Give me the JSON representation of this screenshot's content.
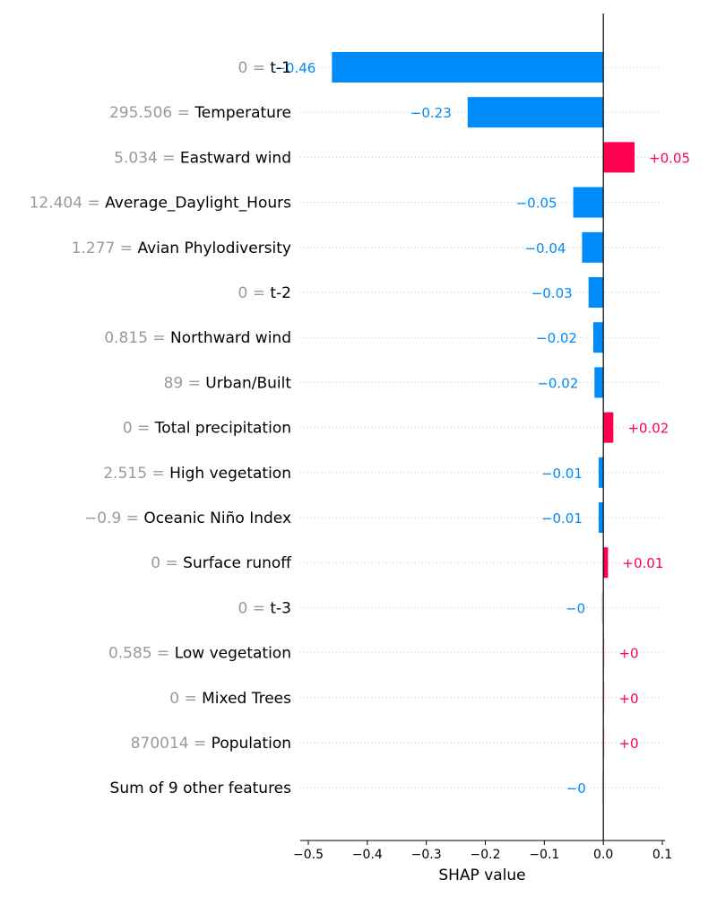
{
  "chart_data": {
    "type": "bar",
    "orientation": "horizontal",
    "xlabel": "SHAP value",
    "xlim": [
      -0.52,
      0.105
    ],
    "xticks": [
      -0.5,
      -0.4,
      -0.3,
      -0.2,
      -0.1,
      0.0,
      0.1
    ],
    "xtick_labels": [
      "−0.5",
      "−0.4",
      "−0.3",
      "−0.2",
      "−0.1",
      "0.0",
      "0.1"
    ],
    "grid": "dotted horizontal rows",
    "colors": {
      "negative": "#008bfb",
      "positive": "#ff0051",
      "axis": "#000000",
      "feature_value": "#999999",
      "zero_line": "#000000",
      "grid": "#cccccc"
    },
    "features": [
      {
        "value": "0",
        "name": "t-1",
        "shap": -0.46,
        "label": "−0.46"
      },
      {
        "value": "295.506",
        "name": "Temperature",
        "shap": -0.23,
        "label": "−0.23"
      },
      {
        "value": "5.034",
        "name": "Eastward wind",
        "shap": 0.053,
        "label": "+0.05"
      },
      {
        "value": "12.404",
        "name": "Average_Daylight_Hours",
        "shap": -0.051,
        "label": "−0.05"
      },
      {
        "value": "1.277",
        "name": "Avian Phylodiversity",
        "shap": -0.036,
        "label": "−0.04"
      },
      {
        "value": "0",
        "name": "t-2",
        "shap": -0.025,
        "label": "−0.03"
      },
      {
        "value": "0.815",
        "name": "Northward wind",
        "shap": -0.017,
        "label": "−0.02"
      },
      {
        "value": "89",
        "name": "Urban/Built",
        "shap": -0.015,
        "label": "−0.02"
      },
      {
        "value": "0",
        "name": "Total precipitation",
        "shap": 0.017,
        "label": "+0.02"
      },
      {
        "value": "2.515",
        "name": "High vegetation",
        "shap": -0.008,
        "label": "−0.01"
      },
      {
        "value": "−0.9",
        "name": "Oceanic Niño Index",
        "shap": -0.008,
        "label": "−0.01"
      },
      {
        "value": "0",
        "name": "Surface runoff",
        "shap": 0.008,
        "label": "+0.01"
      },
      {
        "value": "0",
        "name": "t-3",
        "shap": -0.003,
        "label": "−0"
      },
      {
        "value": "0.585",
        "name": "Low vegetation",
        "shap": 0.002,
        "label": "+0"
      },
      {
        "value": "0",
        "name": "Mixed Trees",
        "shap": 0.002,
        "label": "+0"
      },
      {
        "value": "870014",
        "name": "Population",
        "shap": 0.002,
        "label": "+0"
      },
      {
        "value": "",
        "name": "Sum of 9 other features",
        "shap": -0.002,
        "label": "−0"
      }
    ]
  }
}
